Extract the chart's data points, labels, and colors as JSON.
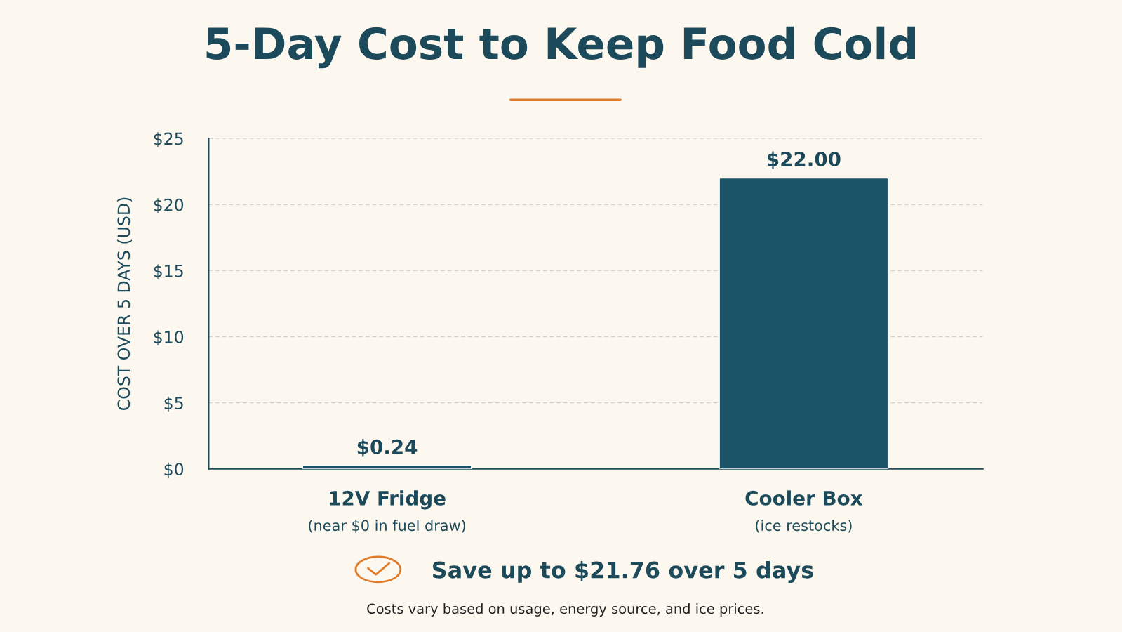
{
  "chart_data": {
    "type": "bar",
    "title": "5-Day Cost to Keep Food Cold",
    "categories": [
      "12V Fridge\n(near $0 in fuel draw)",
      "Cooler Box\n(ice restocks)"
    ],
    "values": [
      0.24,
      22.0
    ],
    "value_labels": [
      "$0.24",
      "$22.00"
    ],
    "color": "#1a5466",
    "ylabel": "COST OVER 5 DAYS (USD)",
    "ylim": [
      0,
      25
    ],
    "yticks": [
      {
        "value": 0,
        "label": "$0"
      },
      {
        "value": 5,
        "label": "$5"
      },
      {
        "value": 10,
        "label": "$10"
      },
      {
        "value": 15,
        "label": "$15"
      },
      {
        "value": 20,
        "label": "$20"
      },
      {
        "value": 25,
        "label": "$25"
      }
    ],
    "grid": "y",
    "annotations": [
      "Save up to $21.76 over 5 days",
      "Costs vary based on usage, energy source, and ice prices."
    ]
  }
}
